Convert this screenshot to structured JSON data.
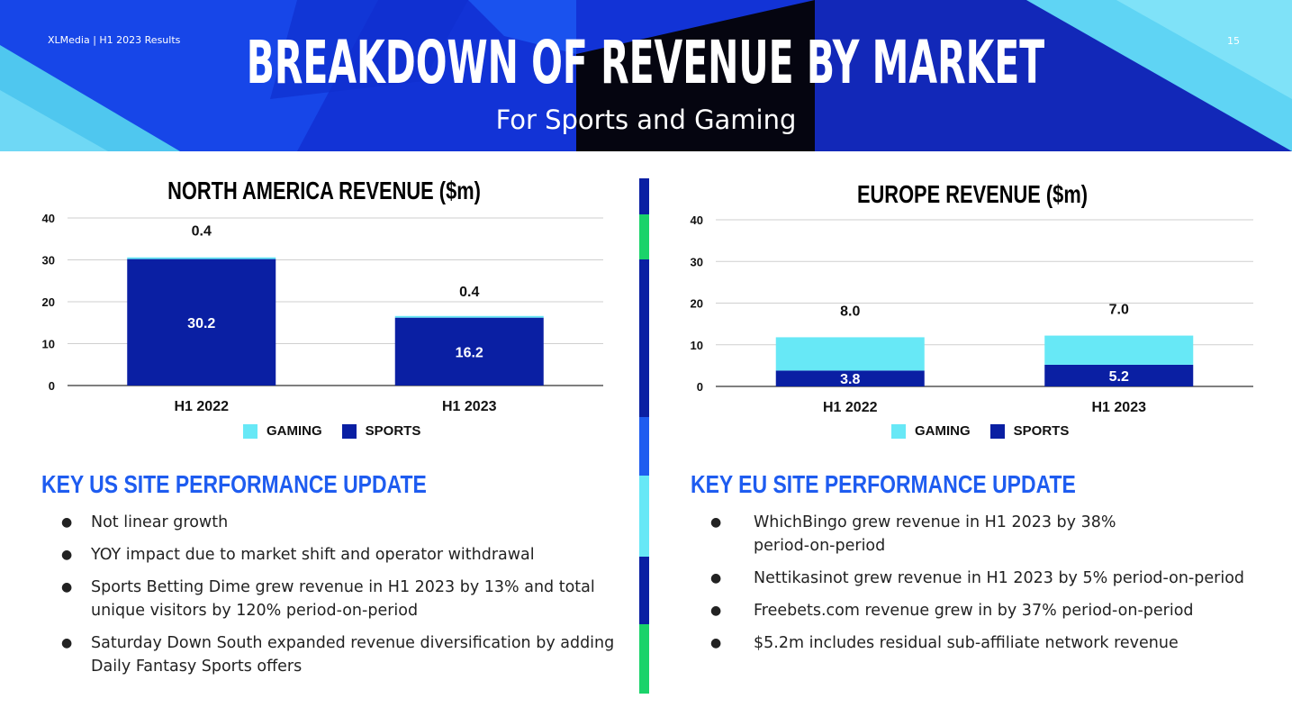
{
  "header": {
    "brand": "XLMedia | H1 2023 Results",
    "page_number": "15",
    "title": "BREAKDOWN OF REVENUE BY MARKET",
    "subtitle": "For Sports and Gaming"
  },
  "colors": {
    "gaming": "#67e8f6",
    "sports": "#0a1fa3",
    "accent_blue": "#1e5cf0",
    "divider_green": "#1ad36a"
  },
  "chart_data": [
    {
      "type": "bar",
      "stacked": true,
      "title": "NORTH AMERICA REVENUE ($m)",
      "categories": [
        "H1 2022",
        "H1 2023"
      ],
      "series": [
        {
          "name": "SPORTS",
          "values": [
            30.2,
            16.2
          ],
          "labels": [
            "30.2",
            "16.2"
          ]
        },
        {
          "name": "GAMING",
          "values": [
            0.4,
            0.4
          ],
          "labels": [
            "0.4",
            "0.4"
          ]
        }
      ],
      "yticks": [
        "0",
        "10",
        "20",
        "30",
        "40"
      ],
      "ylim": [
        0,
        40
      ],
      "grid": true,
      "legend": "bottom",
      "legend_labels": [
        "GAMING",
        "SPORTS"
      ]
    },
    {
      "type": "bar",
      "stacked": true,
      "title": "EUROPE REVENUE ($m)",
      "categories": [
        "H1 2022",
        "H1 2023"
      ],
      "series": [
        {
          "name": "SPORTS",
          "values": [
            3.8,
            5.2
          ],
          "labels": [
            "3.8",
            "5.2"
          ]
        },
        {
          "name": "GAMING",
          "values": [
            8.0,
            7.0
          ],
          "labels": [
            "8.0",
            "7.0"
          ]
        }
      ],
      "yticks": [
        "0",
        "10",
        "20",
        "30",
        "40"
      ],
      "ylim": [
        0,
        40
      ],
      "grid": true,
      "legend": "bottom",
      "legend_labels": [
        "GAMING",
        "SPORTS"
      ]
    }
  ],
  "us_section": {
    "heading": "KEY US SITE PERFORMANCE UPDATE",
    "bullets": [
      "Not linear growth",
      "YOY impact due to market shift and operator withdrawal",
      "Sports Betting Dime grew revenue in H1 2023 by 13% and total unique visitors by 120% period-on-period",
      "Saturday Down South expanded revenue diversification by adding Daily Fantasy Sports offers"
    ]
  },
  "eu_section": {
    "heading": "KEY EU SITE PERFORMANCE UPDATE",
    "bullets": [
      "WhichBingo grew revenue in H1 2023 by 38% period-on-period",
      "Nettikasinot grew revenue in H1 2023 by 5% period-on-period",
      "Freebets.com revenue grew in by 37% period-on-period",
      "$5.2m includes residual sub-affiliate network revenue"
    ]
  }
}
